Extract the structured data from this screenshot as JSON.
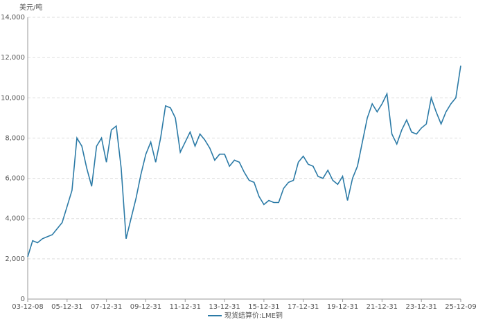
{
  "chart_data": {
    "type": "line",
    "y_unit": "美元/吨",
    "categories": [
      "03-12-08",
      null,
      null,
      null,
      null,
      null,
      null,
      null,
      "05-12-31",
      null,
      null,
      null,
      null,
      null,
      null,
      null,
      "07-12-31",
      null,
      null,
      null,
      null,
      null,
      null,
      null,
      "09-12-31",
      null,
      null,
      null,
      null,
      null,
      null,
      null,
      "11-12-31",
      null,
      null,
      null,
      null,
      null,
      null,
      null,
      "13-12-31",
      null,
      null,
      null,
      null,
      null,
      null,
      null,
      "15-12-31",
      null,
      null,
      null,
      null,
      null,
      null,
      null,
      "17-12-31",
      null,
      null,
      null,
      null,
      null,
      null,
      null,
      "19-12-31",
      null,
      null,
      null,
      null,
      null,
      null,
      null,
      "21-12-31",
      null,
      null,
      null,
      null,
      null,
      null,
      null,
      "23-12-31",
      null,
      null,
      null,
      null,
      null,
      null,
      null,
      "25-12-09"
    ],
    "series": [
      {
        "name": "现货结算价:LME铜",
        "color": "#2b7aa6",
        "values": [
          2100,
          2900,
          2800,
          3000,
          3100,
          3200,
          3500,
          3800,
          4600,
          5400,
          8000,
          7600,
          6500,
          5600,
          7600,
          8000,
          6800,
          8400,
          8600,
          6500,
          3000,
          4000,
          5000,
          6200,
          7200,
          7800,
          6800,
          8000,
          9600,
          9500,
          9000,
          7300,
          7800,
          8300,
          7600,
          8200,
          7900,
          7500,
          6900,
          7200,
          7200,
          6600,
          6900,
          6800,
          6300,
          5900,
          5800,
          5100,
          4700,
          4900,
          4800,
          4800,
          5500,
          5800,
          5900,
          6800,
          7100,
          6700,
          6600,
          6100,
          6000,
          6400,
          5900,
          5700,
          6100,
          4900,
          6000,
          6600,
          7800,
          9000,
          9700,
          9300,
          9700,
          10200,
          8200,
          7700,
          8400,
          8900,
          8300,
          8200,
          8500,
          8700,
          10000,
          9300,
          8700,
          9300,
          9700,
          10000,
          11600
        ]
      }
    ],
    "ylim": [
      0,
      14000
    ],
    "yticks": [
      0,
      {
        "value": 2000,
        "label": "2,000"
      },
      {
        "value": 4000,
        "label": "4,000"
      },
      {
        "value": 6000,
        "label": "6,000"
      },
      {
        "value": 8000,
        "label": "8,000"
      },
      {
        "value": 10000,
        "label": "10,000"
      },
      {
        "value": 12000,
        "label": "12,000"
      },
      {
        "value": 14000,
        "label": "14,000"
      }
    ],
    "grid": true,
    "legend": "bottom"
  }
}
